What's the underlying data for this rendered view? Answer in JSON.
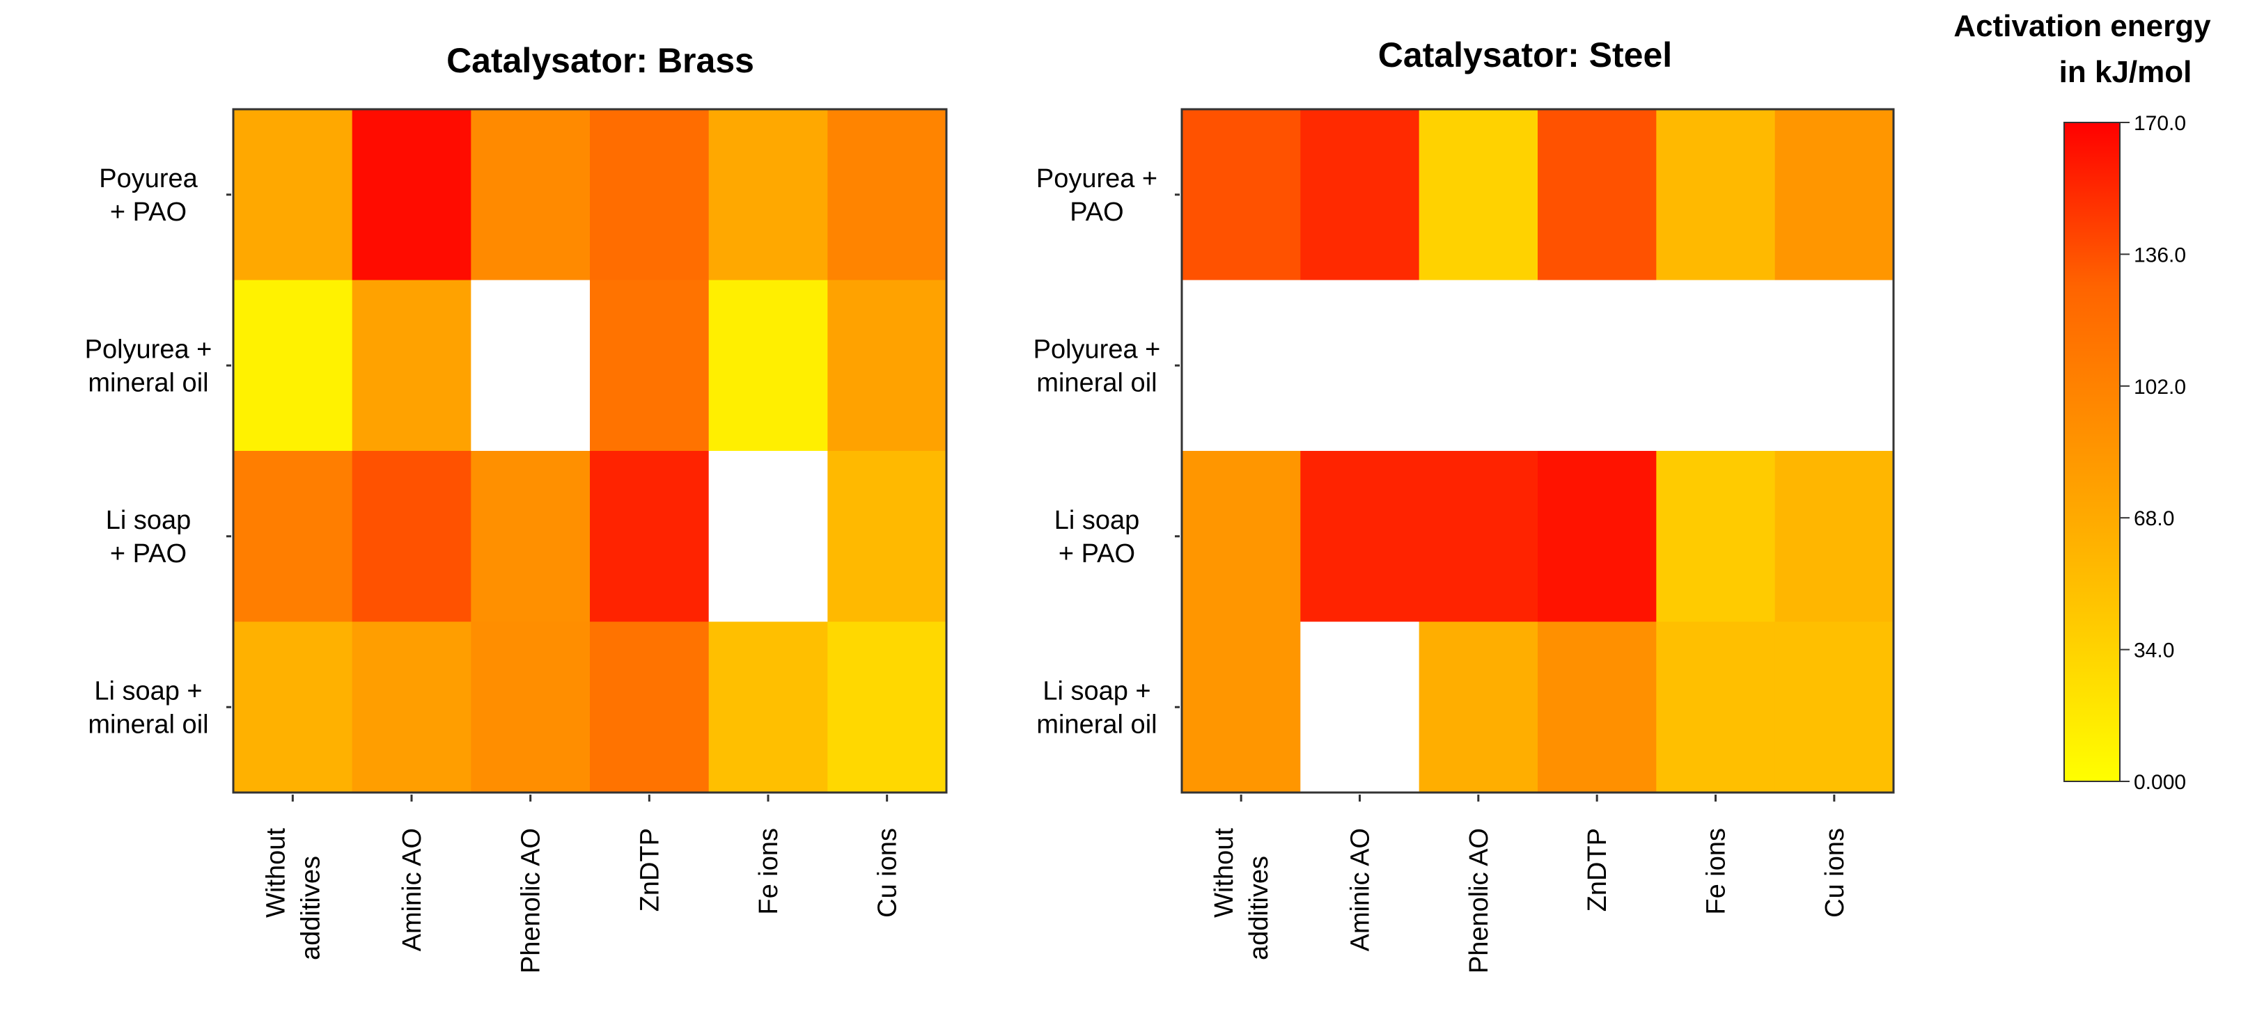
{
  "chart_data": [
    {
      "type": "heatmap",
      "title": "Catalysator: Brass",
      "xlabel": "",
      "ylabel": "",
      "row_labels": [
        [
          "Poyurea",
          "+ PAO"
        ],
        [
          "Polyurea +",
          "mineral oil"
        ],
        [
          "Li soap",
          "+ PAO"
        ],
        [
          "Li soap +",
          "mineral oil"
        ]
      ],
      "col_labels": [
        [
          "Without",
          "additives"
        ],
        [
          "Aminic AO"
        ],
        [
          "Phenolic AO"
        ],
        [
          "ZnDTP"
        ],
        [
          "Fe ions"
        ],
        [
          "Cu  ions"
        ]
      ],
      "values": [
        [
          70,
          165,
          95,
          120,
          70,
          100
        ],
        [
          10,
          75,
          null,
          115,
          12,
          75
        ],
        [
          105,
          135,
          90,
          155,
          null,
          55
        ],
        [
          62,
          78,
          92,
          115,
          50,
          30
        ]
      ]
    },
    {
      "type": "heatmap",
      "title": "Catalysator: Steel",
      "xlabel": "",
      "ylabel": "",
      "row_labels": [
        [
          "Poyurea +",
          "PAO"
        ],
        [
          "Polyurea +",
          "mineral oil"
        ],
        [
          "Li soap",
          "+ PAO"
        ],
        [
          "Li soap +",
          "mineral oil"
        ]
      ],
      "col_labels": [
        [
          "Without",
          "additives"
        ],
        [
          "Aminic AO"
        ],
        [
          "Phenolic AO"
        ],
        [
          "ZnDTP"
        ],
        [
          "Fe ions"
        ],
        [
          "Cu  ions"
        ]
      ],
      "values": [
        [
          135,
          152,
          35,
          135,
          55,
          85
        ],
        [
          null,
          null,
          null,
          null,
          null,
          null
        ],
        [
          85,
          155,
          155,
          162,
          40,
          58
        ],
        [
          85,
          null,
          65,
          90,
          50,
          50
        ]
      ]
    }
  ],
  "colorbar": {
    "title_lines": [
      "Activation energy",
      "in kJ/mol"
    ],
    "min": 0,
    "max": 170,
    "ticks": [
      "170.0",
      "136.0",
      "102.0",
      "68.0",
      "34.0",
      "0.000"
    ],
    "colors": [
      "#ffff00",
      "#ffc800",
      "#ff9600",
      "#ff6400",
      "#ff0000"
    ]
  }
}
